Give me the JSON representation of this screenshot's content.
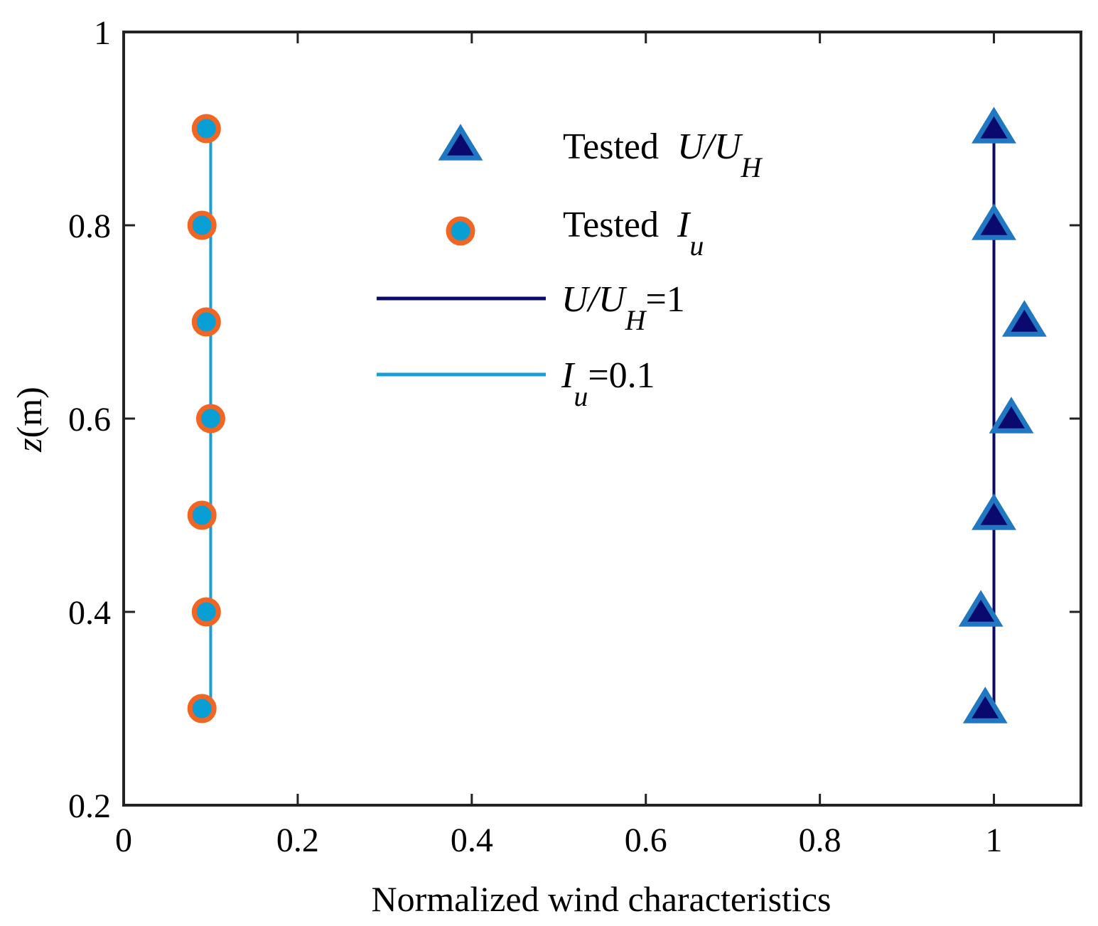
{
  "chart_data": {
    "type": "scatter",
    "title": "",
    "xlabel": "Normalized wind characteristics",
    "ylabel": {
      "var": "z",
      "unit": "(m)"
    },
    "xlim": [
      0,
      1.1
    ],
    "ylim": [
      0.2,
      1.0
    ],
    "x_ticks": [
      0,
      0.2,
      0.4,
      0.6,
      0.8,
      1
    ],
    "x_tick_labels": [
      "0",
      "0.2",
      "0.4",
      "0.6",
      "0.8",
      "1"
    ],
    "y_ticks": [
      0.2,
      0.4,
      0.6,
      0.8,
      1
    ],
    "y_tick_labels": [
      "0.2",
      "0.4",
      "0.6",
      "0.8",
      "1"
    ],
    "grid": false,
    "legend_position": "top-center",
    "series": [
      {
        "name": "Tested U/U_H",
        "legend": {
          "prefix": "Tested",
          "main": "U/U",
          "sub": "H",
          "suffix": ""
        },
        "kind": "scatter",
        "marker": "triangle",
        "fill": "#0a0a6e",
        "edge": "#1f78c1",
        "points": [
          {
            "x": 0.99,
            "y": 0.3
          },
          {
            "x": 0.985,
            "y": 0.4
          },
          {
            "x": 1.0,
            "y": 0.5
          },
          {
            "x": 1.02,
            "y": 0.6
          },
          {
            "x": 1.035,
            "y": 0.7
          },
          {
            "x": 1.0,
            "y": 0.8
          },
          {
            "x": 1.0,
            "y": 0.9
          }
        ]
      },
      {
        "name": "Tested I_u",
        "legend": {
          "prefix": "Tested",
          "main": "I",
          "sub": "u",
          "suffix": ""
        },
        "kind": "scatter",
        "marker": "circle",
        "fill": "#0a9fd4",
        "edge": "#f26522",
        "points": [
          {
            "x": 0.09,
            "y": 0.3
          },
          {
            "x": 0.095,
            "y": 0.4
          },
          {
            "x": 0.09,
            "y": 0.5
          },
          {
            "x": 0.1,
            "y": 0.6
          },
          {
            "x": 0.095,
            "y": 0.7
          },
          {
            "x": 0.09,
            "y": 0.8
          },
          {
            "x": 0.095,
            "y": 0.9
          }
        ]
      },
      {
        "name": "U/U_H=1",
        "legend": {
          "prefix": "",
          "main": "U/U",
          "sub": "H",
          "suffix": "=1"
        },
        "kind": "line",
        "color": "#0a0a6e",
        "points": [
          {
            "x": 1.0,
            "y": 0.3
          },
          {
            "x": 1.0,
            "y": 0.9
          }
        ]
      },
      {
        "name": "I_u=0.1",
        "legend": {
          "prefix": "",
          "main": "I",
          "sub": "u",
          "suffix": "=0.1"
        },
        "kind": "line",
        "color": "#1a9ed6",
        "points": [
          {
            "x": 0.1,
            "y": 0.3
          },
          {
            "x": 0.1,
            "y": 0.9
          }
        ]
      }
    ]
  }
}
